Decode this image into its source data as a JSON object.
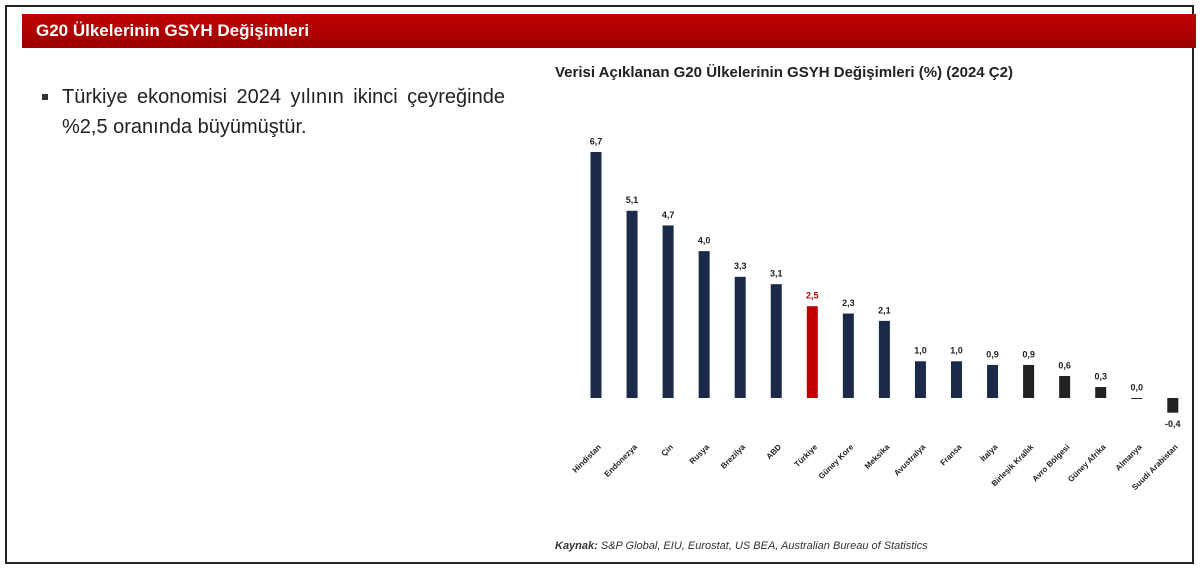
{
  "header": {
    "title": "G20 Ülkelerinin GSYH Değişimleri"
  },
  "bullet": "Türkiye ekonomisi 2024 yılının ikinci çeyreğinde %2,5 oranında büyümüştür.",
  "source_label": "Kaynak:",
  "source": "S&P Global, EIU, Eurostat, US BEA, Australian Bureau of Statistics",
  "chart_data": {
    "type": "bar",
    "title": "Verisi Açıklanan G20 Ülkelerinin GSYH Değişimleri (%) (2024 Ç2)",
    "categories": [
      "Hindistan",
      "Endonezya",
      "Çin",
      "Rusya",
      "Brezilya",
      "ABD",
      "Türkiye",
      "Güney Kore",
      "Meksika",
      "Avustralya",
      "Fransa",
      "İtalya",
      "Birleşik Krallık",
      "Avro Bölgesi",
      "Güney Afrika",
      "Almanya",
      "Suudi Arabistan"
    ],
    "values": [
      6.7,
      5.1,
      4.7,
      4.0,
      3.3,
      3.1,
      2.5,
      2.3,
      2.1,
      1.0,
      1.0,
      0.9,
      0.9,
      0.6,
      0.3,
      0.0,
      -0.4
    ],
    "value_labels": [
      "6,7",
      "5,1",
      "4,7",
      "4,0",
      "3,3",
      "3,1",
      "2,5",
      "2,3",
      "2,1",
      "1,0",
      "1,0",
      "0,9",
      "0,9",
      "0,6",
      "0,3",
      "0,0",
      "-0,4"
    ],
    "colors": [
      "#1b2a48",
      "#1b2a48",
      "#1b2a48",
      "#1b2a48",
      "#1b2a48",
      "#1b2a48",
      "#c00000",
      "#1b2a48",
      "#1b2a48",
      "#1b2a48",
      "#1b2a48",
      "#1b2a48",
      "#222222",
      "#222222",
      "#222222",
      "#222222",
      "#222222"
    ]
  }
}
